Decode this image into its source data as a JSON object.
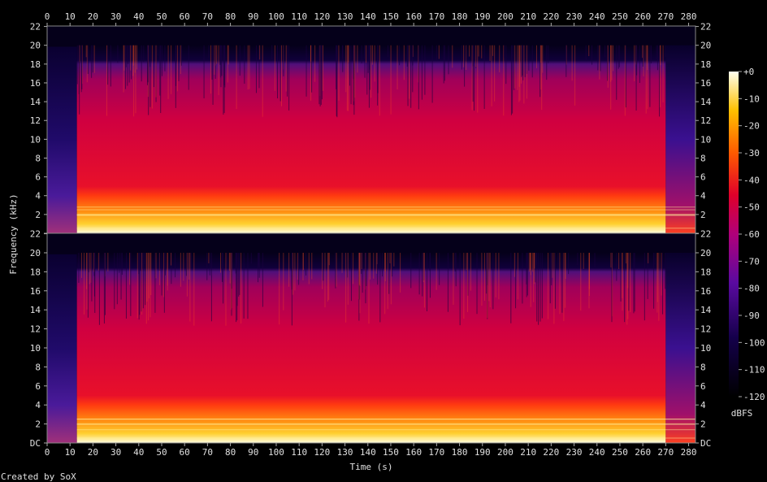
{
  "chart_data": {
    "type": "heatmap",
    "xlabel": "Time (s)",
    "ylabel": "Frequency (kHz)",
    "x_ticks": [
      0,
      10,
      20,
      30,
      40,
      50,
      60,
      70,
      80,
      90,
      100,
      110,
      120,
      130,
      140,
      150,
      160,
      170,
      180,
      190,
      200,
      210,
      220,
      230,
      240,
      250,
      260,
      270,
      280
    ],
    "xlim": [
      0,
      283
    ],
    "ylim_khz": [
      0,
      22.05
    ],
    "panels": [
      {
        "name": "",
        "y_tick_labels": [
          "DC",
          "2",
          "4",
          "6",
          "8",
          "10",
          "12",
          "14",
          "16",
          "18",
          "20",
          "22"
        ]
      },
      {
        "name": "",
        "y_tick_labels": [
          "DC",
          "2",
          "4",
          "6",
          "8",
          "10",
          "12",
          "14",
          "16",
          "18",
          "20",
          "22"
        ]
      }
    ],
    "top_y_labels": [
      "22",
      "20",
      "18",
      "16",
      "14",
      "12",
      "10",
      "8",
      "6",
      "4",
      "2"
    ],
    "colorbar": {
      "label": "dBFS",
      "ticks": [
        "+0",
        "-10",
        "-20",
        "-30",
        "-40",
        "-50",
        "-60",
        "-70",
        "-80",
        "-90",
        "-100",
        "-110",
        "-120"
      ],
      "range_db": [
        -120,
        0
      ]
    },
    "segments": [
      {
        "start": 0,
        "end": 13,
        "level": "quiet intro, energy below 5 kHz"
      },
      {
        "start": 13,
        "end": 270,
        "level": "full band music up to 20 kHz"
      },
      {
        "start": 270,
        "end": 283,
        "level": "fade out"
      }
    ],
    "colors": {
      "background": "#000000",
      "low": "#000010",
      "mid_low": "#3a0a8a",
      "mid": "#d0003a",
      "mid_high": "#ff6000",
      "high": "#ffffe0"
    }
  },
  "footer": {
    "credit": "Created by SoX"
  }
}
